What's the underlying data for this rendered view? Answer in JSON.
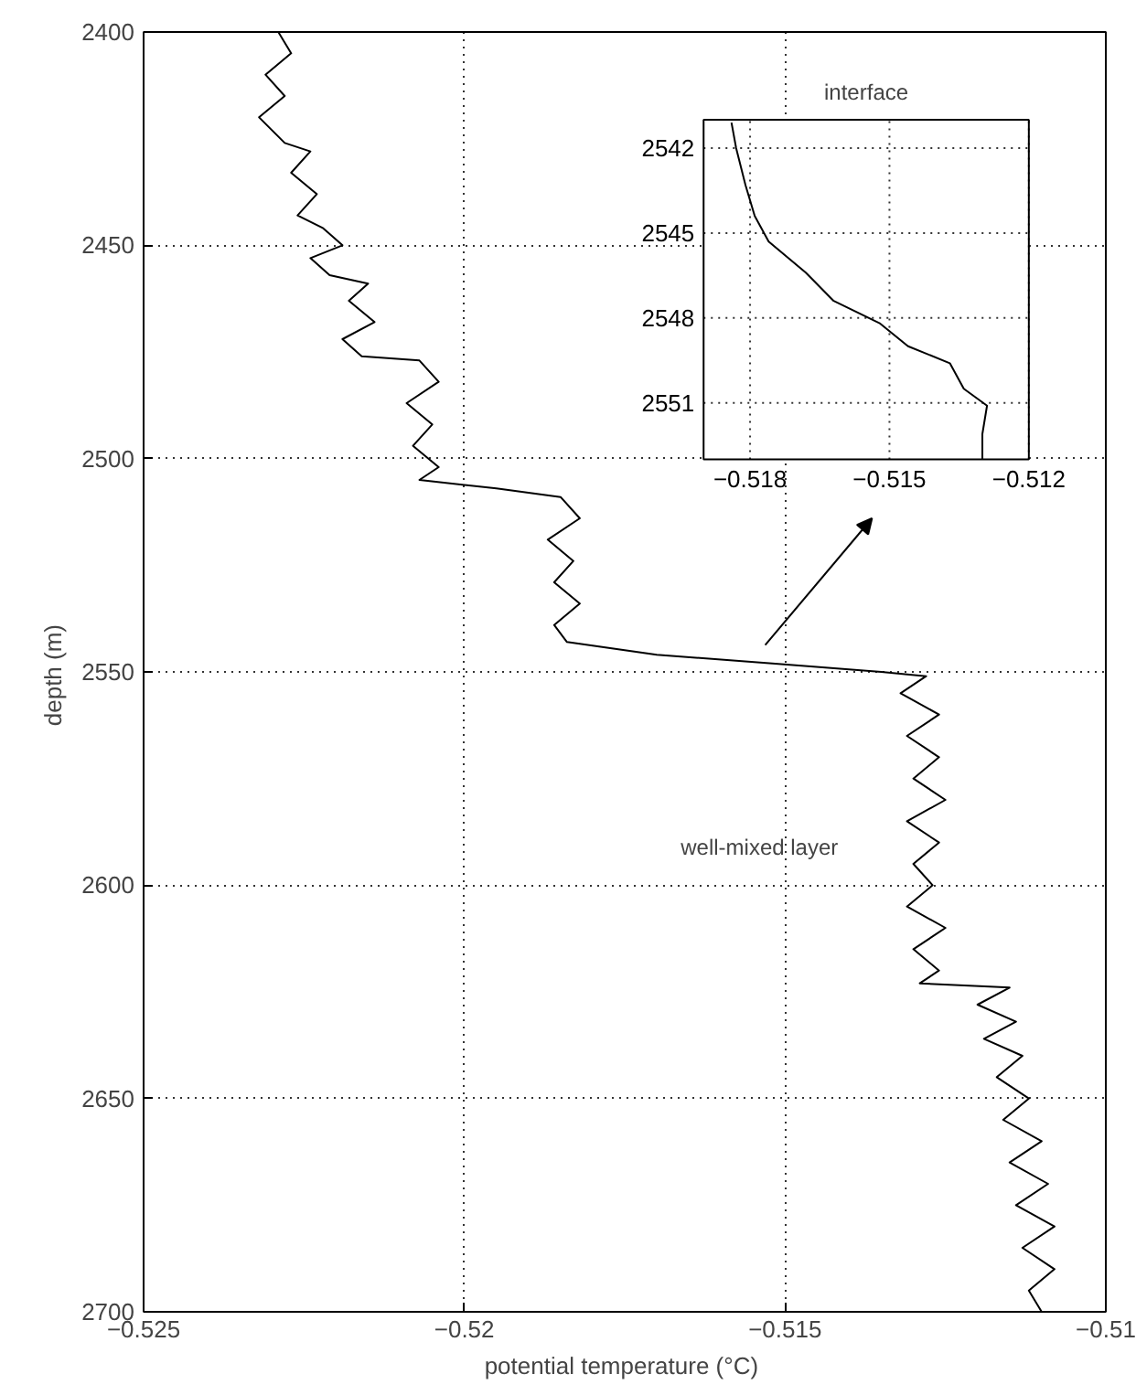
{
  "chart_data": [
    {
      "type": "line",
      "xlabel": "potential temperature  (°C)",
      "ylabel": "depth  (m)",
      "xlim": [
        -0.525,
        -0.51
      ],
      "ylim": [
        2700,
        2400
      ],
      "xticks": [
        {
          "value": -0.525,
          "label": "−0.525"
        },
        {
          "value": -0.52,
          "label": "−0.52"
        },
        {
          "value": -0.515,
          "label": "−0.515"
        },
        {
          "value": -0.51,
          "label": "−0.51"
        }
      ],
      "yticks": [
        2400,
        2450,
        2500,
        2550,
        2600,
        2650,
        2700
      ],
      "grid": true,
      "annotations": [
        "well-mixed layer"
      ],
      "series": [
        {
          "color": "#000000",
          "x": [
            -0.5229,
            -0.5227,
            -0.5231,
            -0.5228,
            -0.5232,
            -0.5228,
            -0.5224,
            -0.5227,
            -0.5223,
            -0.5226,
            -0.5222,
            -0.5219,
            -0.5224,
            -0.5221,
            -0.5215,
            -0.5218,
            -0.5214,
            -0.5219,
            -0.5216,
            -0.5207,
            -0.5204,
            -0.5209,
            -0.5205,
            -0.5208,
            -0.5204,
            -0.5207,
            -0.5195,
            -0.5185,
            -0.5182,
            -0.5187,
            -0.5183,
            -0.5186,
            -0.5182,
            -0.5186,
            -0.5184,
            -0.517,
            -0.5152,
            -0.5135,
            -0.5128,
            -0.5132,
            -0.5126,
            -0.5131,
            -0.5126,
            -0.513,
            -0.5125,
            -0.5131,
            -0.5126,
            -0.513,
            -0.5127,
            -0.5131,
            -0.5125,
            -0.513,
            -0.5126,
            -0.5129,
            -0.5115,
            -0.512,
            -0.5114,
            -0.5119,
            -0.5113,
            -0.5117,
            -0.5112,
            -0.5116,
            -0.511,
            -0.5115,
            -0.5109,
            -0.5114,
            -0.5108,
            -0.5113,
            -0.5108,
            -0.5112,
            -0.511
          ],
          "values": [
            2400,
            2405,
            2410,
            2415,
            2420,
            2426,
            2428,
            2433,
            2438,
            2443,
            2446,
            2450,
            2453,
            2457,
            2459,
            2463,
            2468,
            2472,
            2476,
            2477,
            2482,
            2487,
            2492,
            2497,
            2502,
            2505,
            2507,
            2509,
            2514,
            2519,
            2524,
            2529,
            2534,
            2539,
            2543,
            2546,
            2548,
            2550,
            2551,
            2555,
            2560,
            2565,
            2570,
            2575,
            2580,
            2585,
            2590,
            2595,
            2600,
            2605,
            2610,
            2615,
            2620,
            2623,
            2624,
            2628,
            2632,
            2636,
            2640,
            2645,
            2650,
            2655,
            2660,
            2665,
            2670,
            2675,
            2680,
            2685,
            2690,
            2695,
            2700
          ]
        }
      ]
    },
    {
      "type": "line",
      "title": "interface",
      "xlim": [
        -0.519,
        -0.512
      ],
      "ylim": [
        2553,
        2541
      ],
      "xticks": [
        {
          "value": -0.518,
          "label": "−0.518"
        },
        {
          "value": -0.515,
          "label": "−0.515"
        },
        {
          "value": -0.512,
          "label": "−0.512"
        }
      ],
      "yticks": [
        2542,
        2545,
        2548,
        2551
      ],
      "grid": true,
      "series": [
        {
          "color": "#000000",
          "x": [
            -0.5184,
            -0.5183,
            -0.5181,
            -0.5179,
            -0.5176,
            -0.5168,
            -0.5162,
            -0.5152,
            -0.5146,
            -0.5137,
            -0.5134,
            -0.5129,
            -0.513,
            -0.513
          ],
          "values": [
            2541.1,
            2542,
            2543.3,
            2544.4,
            2545.3,
            2546.4,
            2547.4,
            2548.2,
            2549,
            2549.6,
            2550.5,
            2551.1,
            2552.1,
            2553
          ]
        }
      ]
    }
  ]
}
